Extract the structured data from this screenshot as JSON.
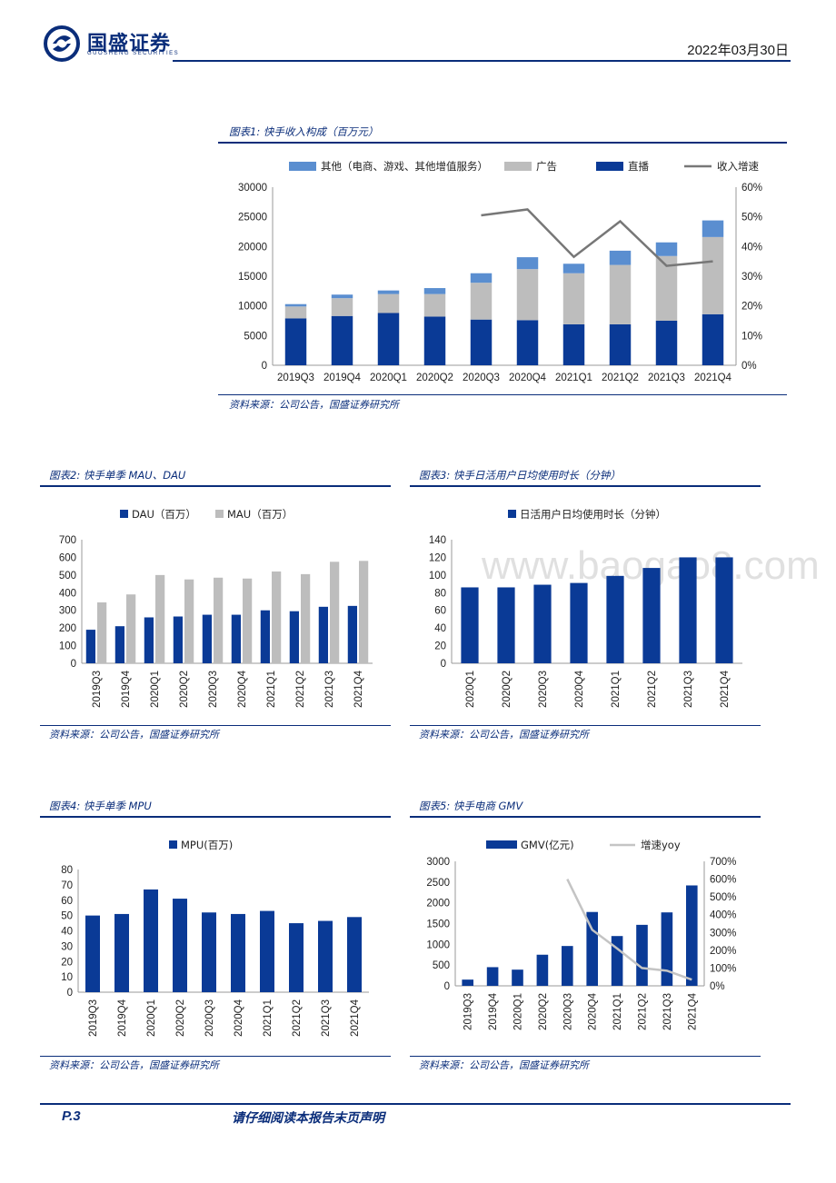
{
  "header": {
    "company_name": "国盛证券",
    "company_name_en": "GUOSHENG SECURITIES",
    "date": "2022年03月30日"
  },
  "colors": {
    "dark_blue": "#0a3a96",
    "light_blue": "#5a8ed0",
    "gray": "#bdbdbd",
    "line_gray": "#777777",
    "line_light": "#c4c4c4",
    "title_blue": "#0a2d7a"
  },
  "watermark": "www.baogao8.com",
  "figures": [
    {
      "title": "图表1: 快手收入构成（百万元）",
      "source": "资料来源：公司公告，国盛证券研究所"
    },
    {
      "title": "图表2: 快手单季 MAU、DAU",
      "source": "资料来源：公司公告，国盛证券研究所"
    },
    {
      "title": "图表3: 快手日活用户日均使用时长（分钟）",
      "source": "资料来源：公司公告，国盛证券研究所"
    },
    {
      "title": "图表4: 快手单季 MPU",
      "source": "资料来源：公司公告，国盛证券研究所"
    },
    {
      "title": "图表5: 快手电商 GMV",
      "source": "资料来源：公司公告，国盛证券研究所"
    }
  ],
  "footer": {
    "page": "P.3",
    "note": "请仔细阅读本报告末页声明"
  },
  "chart_data": [
    {
      "type": "bar",
      "stacked": true,
      "categories": [
        "2019Q3",
        "2019Q4",
        "2020Q1",
        "2020Q2",
        "2020Q3",
        "2020Q4",
        "2021Q1",
        "2021Q2",
        "2021Q3",
        "2021Q4"
      ],
      "series": [
        {
          "name": "直播",
          "values": [
            7900,
            8300,
            8800,
            8200,
            7700,
            7600,
            6900,
            6900,
            7500,
            8600
          ]
        },
        {
          "name": "广告",
          "values": [
            2000,
            3000,
            3200,
            3800,
            6200,
            8600,
            8600,
            10000,
            10900,
            13000
          ]
        },
        {
          "name": "其他（电商、游戏、其他增值服务）",
          "values": [
            400,
            600,
            600,
            1000,
            1600,
            2000,
            1600,
            2400,
            2300,
            2800
          ]
        },
        {
          "name": "收入增速",
          "axis": "right",
          "values": [
            null,
            null,
            null,
            null,
            50.5,
            52.5,
            36.5,
            48.5,
            33.5,
            35
          ]
        }
      ],
      "ylim": [
        0,
        30000
      ],
      "yticks": [
        "0",
        "5000",
        "10000",
        "15000",
        "20000",
        "25000",
        "30000"
      ],
      "y2ticks": [
        "0%",
        "10%",
        "20%",
        "30%",
        "40%",
        "50%",
        "60%"
      ],
      "y2lim": [
        0,
        60
      ],
      "legend": "top"
    },
    {
      "type": "bar",
      "categories": [
        "2019Q3",
        "2019Q4",
        "2020Q1",
        "2020Q2",
        "2020Q3",
        "2020Q4",
        "2021Q1",
        "2021Q2",
        "2021Q3",
        "2021Q4"
      ],
      "series": [
        {
          "name": "DAU（百万）",
          "values": [
            190,
            210,
            260,
            265,
            275,
            275,
            300,
            295,
            320,
            325
          ]
        },
        {
          "name": "MAU（百万）",
          "values": [
            345,
            390,
            500,
            475,
            485,
            480,
            520,
            505,
            575,
            580
          ]
        }
      ],
      "ylim": [
        0,
        700
      ],
      "yticks": [
        "0",
        "100",
        "200",
        "300",
        "400",
        "500",
        "600",
        "700"
      ],
      "legend": "top"
    },
    {
      "type": "bar",
      "categories": [
        "2020Q1",
        "2020Q2",
        "2020Q3",
        "2020Q4",
        "2021Q1",
        "2021Q2",
        "2021Q3",
        "2021Q4"
      ],
      "series": [
        {
          "name": "日活用户日均使用时长（分钟）",
          "values": [
            86,
            86,
            89,
            91,
            99,
            108,
            120,
            120
          ]
        }
      ],
      "ylim": [
        0,
        140
      ],
      "yticks": [
        "0",
        "20",
        "40",
        "60",
        "80",
        "100",
        "120",
        "140"
      ],
      "legend": "top"
    },
    {
      "type": "bar",
      "categories": [
        "2019Q3",
        "2019Q4",
        "2020Q1",
        "2020Q2",
        "2020Q3",
        "2020Q4",
        "2021Q1",
        "2021Q2",
        "2021Q3",
        "2021Q4"
      ],
      "series": [
        {
          "name": "MPU(百万)",
          "values": [
            50,
            51,
            67,
            61,
            52,
            51,
            53,
            45,
            46.5,
            49
          ]
        }
      ],
      "ylim": [
        0,
        80
      ],
      "yticks": [
        "0",
        "10",
        "20",
        "30",
        "40",
        "50",
        "60",
        "70",
        "80"
      ],
      "legend": "top"
    },
    {
      "type": "bar",
      "categories": [
        "2019Q3",
        "2019Q4",
        "2020Q1",
        "2020Q2",
        "2020Q3",
        "2020Q4",
        "2021Q1",
        "2021Q2",
        "2021Q3",
        "2021Q4"
      ],
      "series": [
        {
          "name": "GMV(亿元)",
          "values": [
            150,
            450,
            390,
            750,
            960,
            1780,
            1200,
            1470,
            1770,
            2420
          ]
        },
        {
          "name": "增速yoy",
          "axis": "right",
          "values": [
            null,
            null,
            null,
            null,
            600,
            315,
            210,
            100,
            85,
            35
          ]
        }
      ],
      "ylim": [
        0,
        3000
      ],
      "yticks": [
        "0",
        "500",
        "1000",
        "1500",
        "2000",
        "2500",
        "3000"
      ],
      "y2ticks": [
        "0%",
        "100%",
        "200%",
        "300%",
        "400%",
        "500%",
        "600%",
        "700%"
      ],
      "y2lim": [
        0,
        700
      ],
      "legend": "top"
    }
  ]
}
